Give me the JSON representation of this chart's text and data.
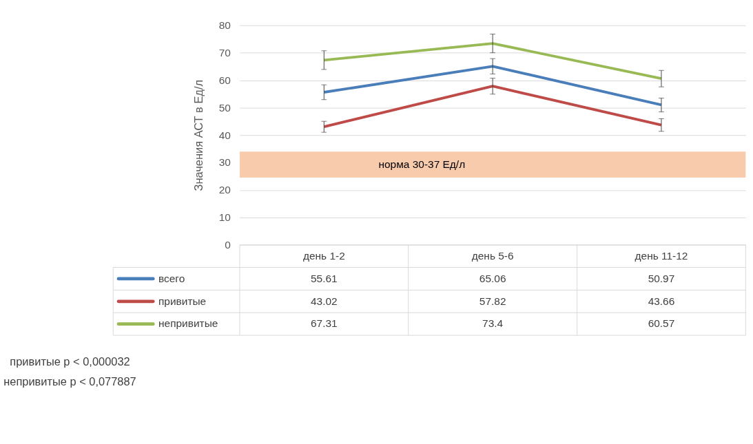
{
  "chart_data": {
    "type": "line",
    "categories": [
      "день 1-2",
      "день 5-6",
      "день 11-12"
    ],
    "series": [
      {
        "name": "всего",
        "color": "#4a7ebb",
        "values": [
          55.61,
          65.06,
          50.97
        ],
        "errors": [
          2.7,
          2.8,
          2.5
        ]
      },
      {
        "name": "привитые",
        "color": "#be4b48",
        "values": [
          43.02,
          57.82,
          43.66
        ],
        "errors": [
          2.0,
          2.9,
          2.3
        ]
      },
      {
        "name": "непривитые",
        "color": "#98b954",
        "values": [
          67.31,
          73.4,
          60.57
        ],
        "errors": [
          3.4,
          3.4,
          3.0
        ]
      }
    ],
    "ylabel": "Значения АСТ в Ед/л",
    "ylim": [
      0,
      80
    ],
    "yticks": [
      0,
      10,
      20,
      30,
      40,
      50,
      60,
      70,
      80
    ],
    "bands": [
      {
        "axis": "y",
        "from": 24.5,
        "to": 34,
        "label": "норма 30-37 Ед/л",
        "color": "#f8cbad"
      }
    ],
    "annotations": [
      "привитые p < 0,000032",
      "непривитые p < 0,077887"
    ],
    "data_labels": true,
    "grid": "y",
    "legend": "bottom",
    "marker": "none",
    "line_style": "solid"
  }
}
